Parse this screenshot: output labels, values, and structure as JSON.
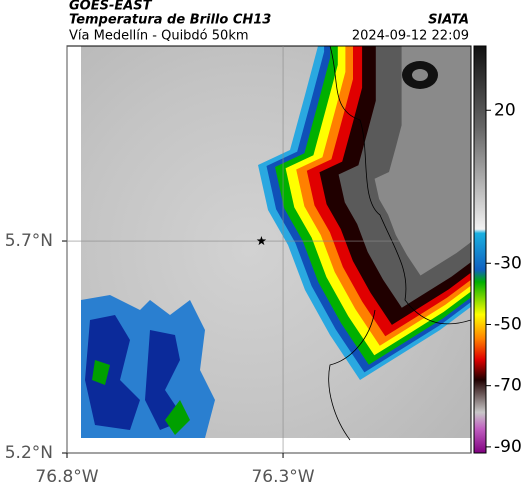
{
  "header": {
    "source": "GOES-EAST",
    "title": "Temperatura de Brillo CH13",
    "org": "SIATA",
    "subtitle": "Vía Medellín - Quibdó 50km",
    "datetime": "2024-09-12 22:09"
  },
  "map": {
    "xlim": [
      -76.8,
      -75.865
    ],
    "ylim": [
      5.2,
      6.16
    ],
    "xticks": [
      {
        "value": -76.8,
        "label": "76.8°W"
      },
      {
        "value": -76.3,
        "label": "76.3°W"
      }
    ],
    "yticks": [
      {
        "value": 5.7,
        "label": "5.7°N"
      },
      {
        "value": 5.2,
        "label": "5.2°N"
      }
    ],
    "marker": {
      "lon": -76.35,
      "lat": 5.7
    },
    "colorbar": {
      "lim": [
        -92,
        41
      ],
      "ticks": [
        20,
        -30,
        -50,
        -70,
        -90
      ]
    }
  }
}
